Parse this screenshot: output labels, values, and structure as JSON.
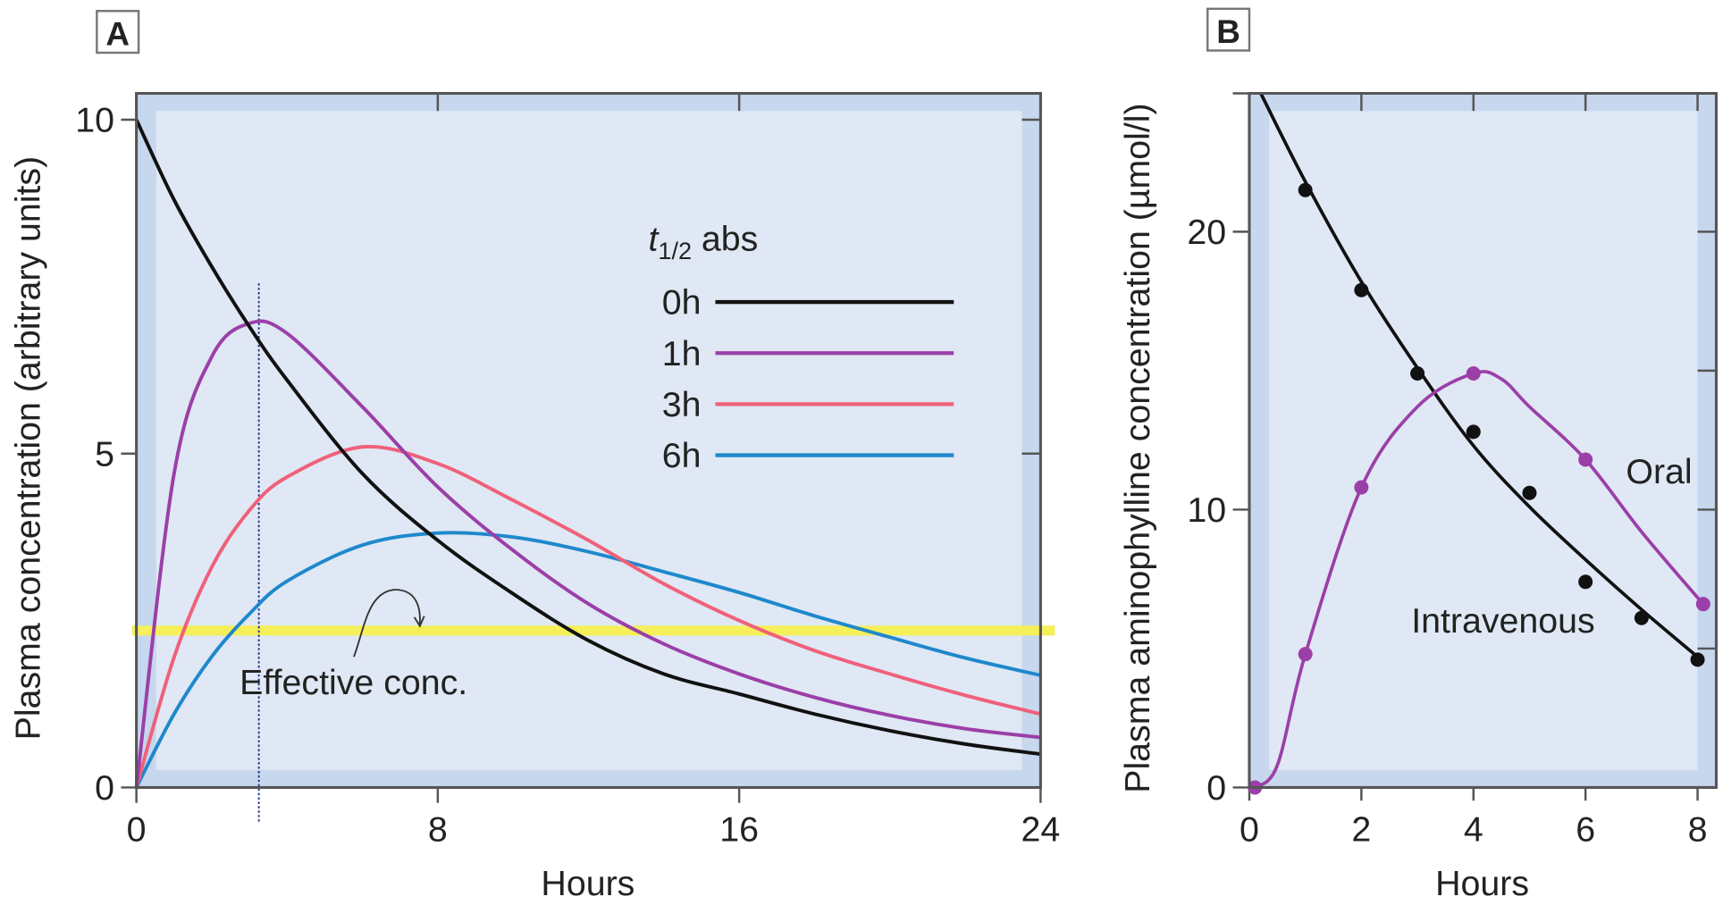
{
  "chart_data": [
    {
      "panel_label": "A",
      "type": "line",
      "xlabel": "Hours",
      "ylabel": "Plasma concentration (arbitrary units)",
      "xlim": [
        0,
        24
      ],
      "ylim": [
        0,
        10.4
      ],
      "xticks": [
        0,
        8,
        16,
        24
      ],
      "yticks": [
        0,
        5,
        10
      ],
      "grid": false,
      "legend_title_main": "t",
      "legend_title_sub": "1/2",
      "legend_title_rest": " abs",
      "legend_position": "upper-right",
      "x": [
        0,
        1,
        2,
        3,
        4,
        6,
        8,
        10,
        12,
        14,
        16,
        18,
        20,
        22,
        24
      ],
      "series": [
        {
          "name": "0h",
          "color": "#111111",
          "values": [
            10,
            8.8,
            7.8,
            6.9,
            6.1,
            4.7,
            3.7,
            2.9,
            2.2,
            1.7,
            1.4,
            1.1,
            0.85,
            0.65,
            0.5
          ]
        },
        {
          "name": "1h",
          "color": "#9b3fa8",
          "values": [
            0,
            4.7,
            6.45,
            6.95,
            6.8,
            5.7,
            4.5,
            3.55,
            2.75,
            2.15,
            1.7,
            1.35,
            1.08,
            0.88,
            0.75
          ]
        },
        {
          "name": "3h",
          "color": "#f0607a",
          "values": [
            0,
            1.95,
            3.3,
            4.15,
            4.65,
            5.1,
            4.85,
            4.3,
            3.7,
            3.05,
            2.5,
            2.05,
            1.7,
            1.38,
            1.1
          ]
        },
        {
          "name": "6h",
          "color": "#1f88cc",
          "values": [
            0,
            1.1,
            1.96,
            2.6,
            3.09,
            3.63,
            3.81,
            3.75,
            3.53,
            3.23,
            2.92,
            2.57,
            2.25,
            1.94,
            1.68
          ]
        }
      ],
      "effective_conc": {
        "label": "Effective conc.",
        "value": 2.35,
        "color": "#f5ef5a"
      },
      "marker_time": 3.25
    },
    {
      "panel_label": "B",
      "type": "line",
      "xlabel": "Hours",
      "ylabel": "Plasma aminophylline concentration (µmol/l)",
      "xlim": [
        0,
        8.33
      ],
      "ylim": [
        0,
        25
      ],
      "xticks": [
        0,
        2,
        4,
        6,
        8
      ],
      "yticks": [
        0,
        10,
        20
      ],
      "minor_yticks": [
        5,
        15
      ],
      "grid": false,
      "series": [
        {
          "name": "Intravenous",
          "color": "#111111",
          "points": {
            "x": [
              1,
              2,
              3,
              4,
              5,
              6,
              7,
              8
            ],
            "y": [
              21.5,
              17.9,
              14.9,
              12.8,
              10.6,
              7.4,
              6.1,
              4.6
            ]
          },
          "fit": {
            "x": [
              0.2,
              1,
              2,
              3,
              4,
              5,
              6,
              7,
              8
            ],
            "y": [
              25,
              21.8,
              18.2,
              15.1,
              12.3,
              10.1,
              8.2,
              6.4,
              4.7
            ]
          }
        },
        {
          "name": "Oral",
          "color": "#9b3fa8",
          "points": {
            "x": [
              0.1,
              1,
              2,
              4,
              6,
              8.1
            ],
            "y": [
              0,
              4.8,
              10.8,
              14.9,
              11.8,
              6.6
            ]
          },
          "fit": {
            "x": [
              0.1,
              0.5,
              1,
              2,
              3,
              4,
              4.5,
              5,
              6,
              7,
              8.1
            ],
            "y": [
              0,
              0.8,
              4.8,
              10.8,
              13.7,
              14.9,
              14.7,
              13.7,
              11.8,
              9.2,
              6.6
            ]
          }
        }
      ]
    }
  ]
}
